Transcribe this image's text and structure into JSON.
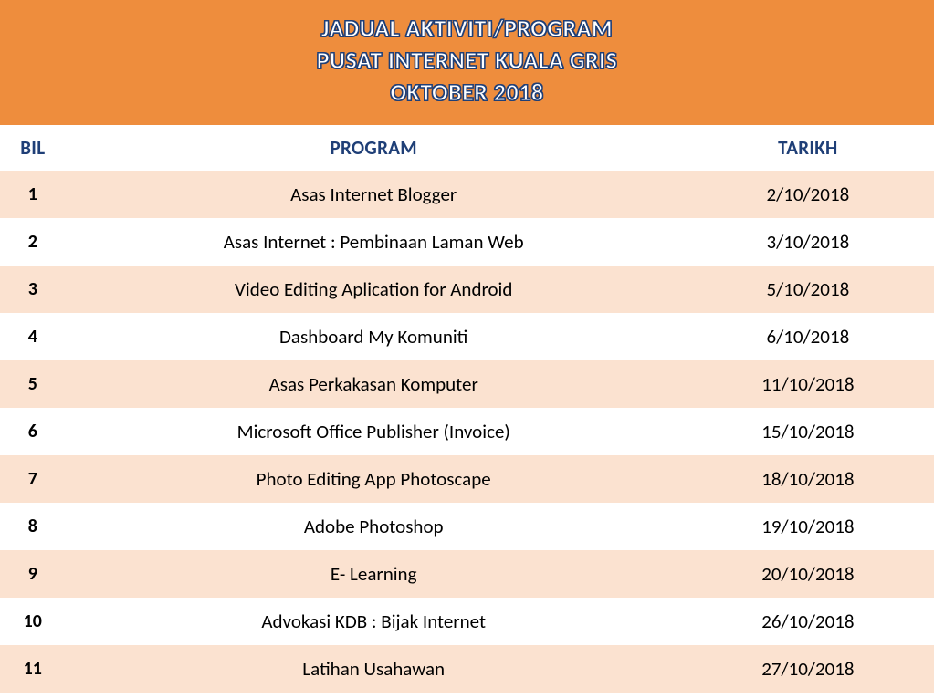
{
  "header": {
    "line1": "JADUAL AKTIVITI/PROGRAM",
    "line2": "PUSAT INTERNET KUALA GRIS",
    "line3": "OKTOBER 2018"
  },
  "table": {
    "type": "table",
    "columns": [
      {
        "key": "bil",
        "label": "BIL",
        "width_pct": 7,
        "align": "center"
      },
      {
        "key": "program",
        "label": "PROGRAM",
        "width_pct": 66,
        "align": "center"
      },
      {
        "key": "tarikh",
        "label": "TARIKH",
        "width_pct": 27,
        "align": "center"
      }
    ],
    "rows": [
      {
        "bil": "1",
        "program": "Asas Internet Blogger",
        "tarikh": "2/10/2018"
      },
      {
        "bil": "2",
        "program": "Asas Internet : Pembinaan Laman Web",
        "tarikh": "3/10/2018"
      },
      {
        "bil": "3",
        "program": "Video Editing Aplication for Android",
        "tarikh": "5/10/2018"
      },
      {
        "bil": "4",
        "program": "Dashboard My Komuniti",
        "tarikh": "6/10/2018"
      },
      {
        "bil": "5",
        "program": "Asas Perkakasan Komputer",
        "tarikh": "11/10/2018"
      },
      {
        "bil": "6",
        "program": "Microsoft Office Publisher (Invoice)",
        "tarikh": "15/10/2018"
      },
      {
        "bil": "7",
        "program": "Photo Editing App Photoscape",
        "tarikh": "18/10/2018"
      },
      {
        "bil": "8",
        "program": "Adobe Photoshop",
        "tarikh": "19/10/2018"
      },
      {
        "bil": "9",
        "program": "E- Learning",
        "tarikh": "20/10/2018"
      },
      {
        "bil": "10",
        "program": "Advokasi KDB : Bijak Internet",
        "tarikh": "26/10/2018"
      },
      {
        "bil": "11",
        "program": "Latihan Usahawan",
        "tarikh": "27/10/2018"
      }
    ],
    "styles": {
      "header_bg": "#ee8d3d",
      "header_text_fill": "#ffffff",
      "header_text_outline": "#1f3f77",
      "header_fontsize": 26,
      "col_header_color": "#1f3f77",
      "col_header_fontsize": 21,
      "col_header_bg": "#ffffff",
      "row_odd_bg": "#fbe2d0",
      "row_even_bg": "#ffffff",
      "cell_fontsize": 21,
      "cell_color": "#000000",
      "bil_fontweight": "bold"
    }
  }
}
